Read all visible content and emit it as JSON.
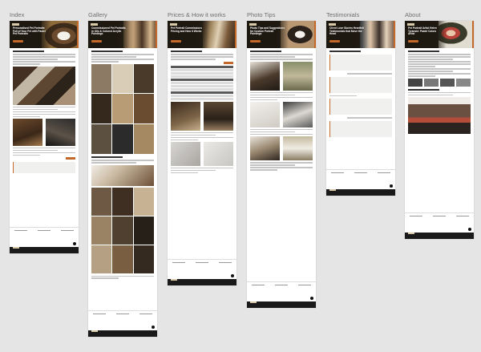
{
  "canvas": {
    "background": "#e5e5e5",
    "accent": "#c5692a",
    "dark": "#1d1810"
  },
  "frames": [
    {
      "id": "index",
      "label": "Index",
      "hero_title": "Personalised Pet Portraits Full of Your Pet with Pastel Pet Portraits"
    },
    {
      "id": "gallery",
      "label": "Gallery",
      "hero_title": "Commissioned Pet Portraits in Oils & Colored Acrylic Paintings"
    },
    {
      "id": "prices",
      "label": "Prices & How it works",
      "hero_title": "Pet Portrait Commissions Pricing and How it Works"
    },
    {
      "id": "photo-tips",
      "label": "Photo Tips",
      "hero_title": "Photo Tips and Suggestions for Custom Portrait Paintings"
    },
    {
      "id": "testimonials",
      "label": "Testimonials",
      "hero_title": "Client Love Stories Heartfelt Testimonials that Move the Heart"
    },
    {
      "id": "about",
      "label": "About",
      "hero_title": "Pet Portrait Artist Helen Tyranski: Pastel Colors Artist"
    }
  ]
}
